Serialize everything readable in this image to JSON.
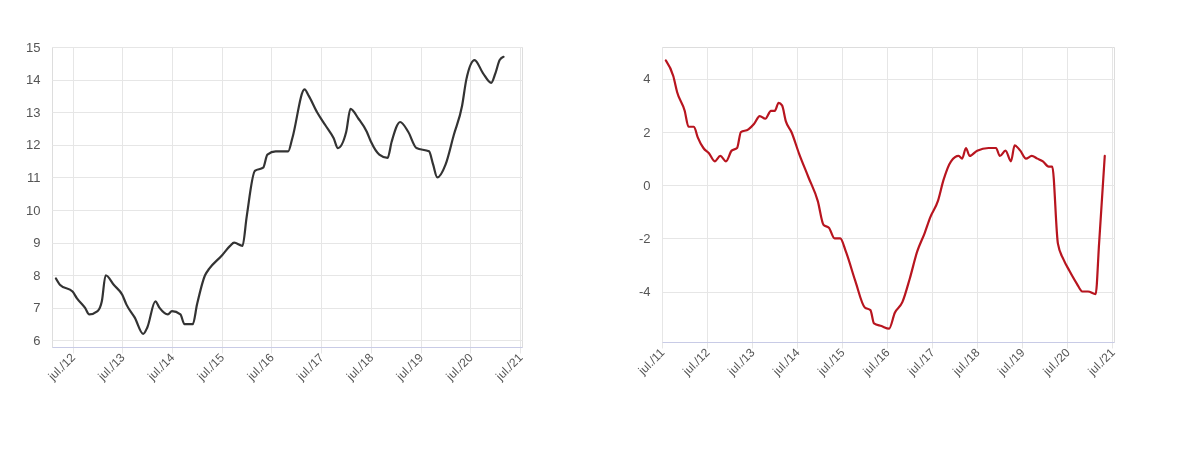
{
  "chart_data": [
    {
      "type": "line",
      "grid": true,
      "legend": false,
      "marker": "none",
      "line_style": "solid",
      "xlim": [
        "2012-02-01",
        "2021-07-15"
      ],
      "xticks": [
        {
          "value": "2012-07-01",
          "label": "jul./12"
        },
        {
          "value": "2013-07-01",
          "label": "jul./13"
        },
        {
          "value": "2014-07-01",
          "label": "jul./14"
        },
        {
          "value": "2015-07-01",
          "label": "jul./15"
        },
        {
          "value": "2016-07-01",
          "label": "jul./16"
        },
        {
          "value": "2017-07-01",
          "label": "jul./17"
        },
        {
          "value": "2018-07-01",
          "label": "jul./18"
        },
        {
          "value": "2019-07-01",
          "label": "jul./19"
        },
        {
          "value": "2020-07-01",
          "label": "jul./20"
        },
        {
          "value": "2021-07-01",
          "label": "jul./21"
        }
      ],
      "ylim": [
        5.8,
        15
      ],
      "yticks": [
        6,
        7,
        8,
        9,
        10,
        11,
        12,
        13,
        14,
        15
      ],
      "series": [
        {
          "color": "#333333",
          "x": [
            "2012-03",
            "2012-04",
            "2012-07",
            "2012-08",
            "2012-10",
            "2012-11",
            "2013-01",
            "2013-02",
            "2013-03",
            "2013-05",
            "2013-07",
            "2013-08",
            "2013-10",
            "2013-12",
            "2014-01",
            "2014-03",
            "2014-04",
            "2014-06",
            "2014-07",
            "2014-09",
            "2014-10",
            "2014-12",
            "2015-01",
            "2015-03",
            "2015-04",
            "2015-07",
            "2015-09",
            "2015-10",
            "2015-12",
            "2016-01",
            "2016-03",
            "2016-05",
            "2016-06",
            "2016-08",
            "2016-11",
            "2016-12",
            "2017-03",
            "2017-04",
            "2017-06",
            "2017-08",
            "2017-10",
            "2017-11",
            "2018-01",
            "2018-02",
            "2018-04",
            "2018-06",
            "2018-07",
            "2018-09",
            "2018-11",
            "2018-12",
            "2019-02",
            "2019-04",
            "2019-06",
            "2019-09",
            "2019-10",
            "2019-11",
            "2020-01",
            "2020-03",
            "2020-05",
            "2020-06",
            "2020-08",
            "2020-10",
            "2020-12",
            "2021-01",
            "2021-02",
            "2021-03"
          ],
          "values": [
            7.9,
            7.7,
            7.5,
            7.3,
            7.0,
            6.8,
            6.9,
            7.2,
            8.0,
            7.7,
            7.4,
            7.1,
            6.7,
            6.2,
            6.4,
            7.2,
            7.0,
            6.8,
            6.9,
            6.8,
            6.5,
            6.5,
            7.1,
            8.0,
            8.2,
            8.6,
            8.9,
            9.0,
            8.9,
            9.8,
            11.2,
            11.3,
            11.7,
            11.8,
            11.8,
            12.2,
            13.7,
            13.5,
            13.0,
            12.6,
            12.2,
            11.9,
            12.4,
            13.1,
            12.8,
            12.4,
            12.1,
            11.7,
            11.6,
            12.1,
            12.7,
            12.4,
            11.9,
            11.8,
            11.4,
            11.0,
            11.4,
            12.3,
            13.2,
            14.0,
            14.6,
            14.2,
            13.9,
            14.2,
            14.6,
            14.7
          ]
        }
      ]
    },
    {
      "type": "line",
      "grid": true,
      "legend": false,
      "marker": "none",
      "line_style": "solid",
      "xlim": [
        "2011-07-01",
        "2021-07-15"
      ],
      "xticks": [
        {
          "value": "2011-07-01",
          "label": "jul./11"
        },
        {
          "value": "2012-07-01",
          "label": "jul./12"
        },
        {
          "value": "2013-07-01",
          "label": "jul./13"
        },
        {
          "value": "2014-07-01",
          "label": "jul./14"
        },
        {
          "value": "2015-07-01",
          "label": "jul./15"
        },
        {
          "value": "2016-07-01",
          "label": "jul./16"
        },
        {
          "value": "2017-07-01",
          "label": "jul./17"
        },
        {
          "value": "2018-07-01",
          "label": "jul./18"
        },
        {
          "value": "2019-07-01",
          "label": "jul./19"
        },
        {
          "value": "2020-07-01",
          "label": "jul./20"
        },
        {
          "value": "2021-07-01",
          "label": "jul./21"
        }
      ],
      "ylim": [
        -5.9,
        5.2
      ],
      "yticks": [
        -4,
        -2,
        0,
        2,
        4
      ],
      "series": [
        {
          "color": "#b8151f",
          "x": [
            "2011-08-01",
            "2011-10-01",
            "2011-11-01",
            "2012-01-01",
            "2012-02-01",
            "2012-03-16",
            "2012-04-16",
            "2012-06-01",
            "2012-07-16",
            "2012-09-01",
            "2012-10-16",
            "2012-12-01",
            "2013-01-16",
            "2013-03-01",
            "2013-04-01",
            "2013-06-01",
            "2013-07-16",
            "2013-09-01",
            "2013-10-16",
            "2013-12-01",
            "2014-01-01",
            "2014-02-01",
            "2014-03-01",
            "2014-04-01",
            "2014-05-16",
            "2014-07-16",
            "2014-10-01",
            "2014-12-16",
            "2015-02-01",
            "2015-03-16",
            "2015-05-01",
            "2015-06-16",
            "2015-08-01",
            "2015-10-16",
            "2016-01-01",
            "2016-02-16",
            "2016-03-16",
            "2016-05-16",
            "2016-07-16",
            "2016-09-01",
            "2016-11-01",
            "2017-01-01",
            "2017-03-01",
            "2017-05-01",
            "2017-06-16",
            "2017-08-16",
            "2017-10-01",
            "2017-12-01",
            "2018-02-01",
            "2018-03-01",
            "2018-04-01",
            "2018-05-01",
            "2018-07-01",
            "2018-10-01",
            "2018-12-01",
            "2019-01-01",
            "2019-02-16",
            "2019-04-01",
            "2019-05-01",
            "2019-06-16",
            "2019-08-01",
            "2019-09-16",
            "2019-11-01",
            "2019-12-16",
            "2020-02-01",
            "2020-03-01",
            "2020-04-16",
            "2020-06-01",
            "2020-07-16",
            "2020-09-16",
            "2020-11-01",
            "2020-12-16",
            "2021-02-16",
            "2021-03-16",
            "2021-05-01"
          ],
          "values": [
            4.7,
            4.1,
            3.5,
            2.8,
            2.2,
            2.2,
            1.8,
            1.4,
            1.2,
            0.9,
            1.1,
            0.9,
            1.3,
            1.4,
            2.0,
            2.1,
            2.3,
            2.6,
            2.5,
            2.8,
            2.8,
            3.1,
            3.0,
            2.4,
            2.0,
            1.2,
            0.3,
            -0.6,
            -1.5,
            -1.6,
            -2.0,
            -2.0,
            -2.5,
            -3.6,
            -4.6,
            -4.7,
            -5.2,
            -5.3,
            -5.4,
            -4.8,
            -4.4,
            -3.5,
            -2.5,
            -1.8,
            -1.2,
            -0.6,
            0.2,
            0.9,
            1.1,
            1.0,
            1.4,
            1.1,
            1.3,
            1.4,
            1.4,
            1.1,
            1.3,
            0.9,
            1.5,
            1.3,
            1.0,
            1.1,
            1.0,
            0.9,
            0.7,
            0.7,
            -2.2,
            -2.8,
            -3.2,
            -3.7,
            -4.0,
            -4.0,
            -4.1,
            -2.2,
            1.1
          ]
        }
      ]
    }
  ]
}
